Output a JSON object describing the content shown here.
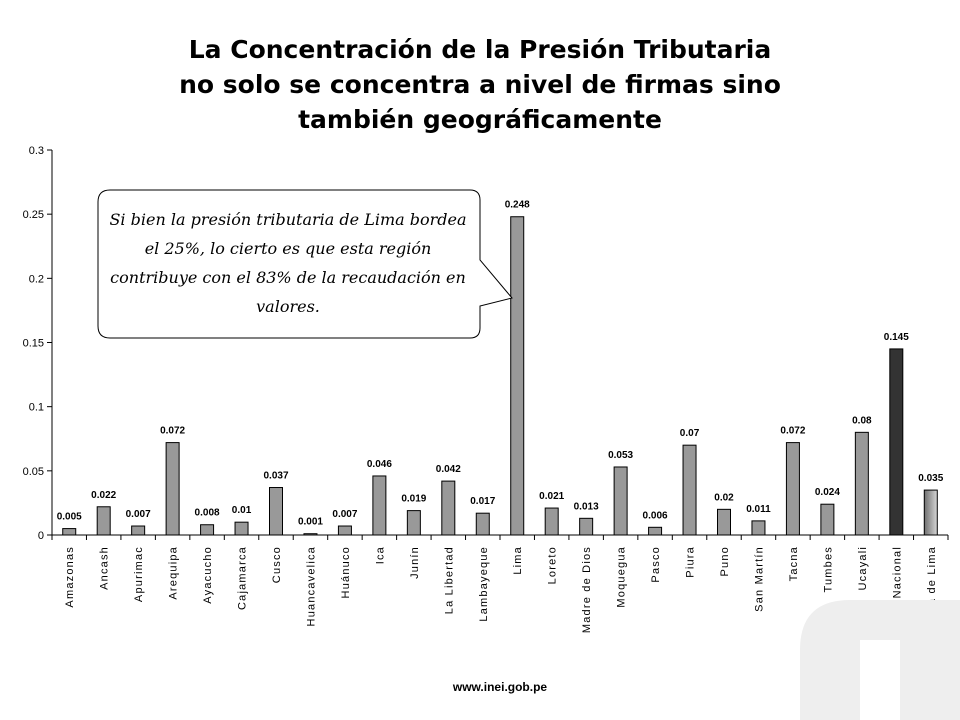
{
  "slide": {
    "title_lines": [
      "La Concentración de la Presión Tributaria",
      "no solo se concentra a nivel de firmas sino",
      "también geográficamente"
    ],
    "callout_lines": [
      "Si bien la presión tributaria de Lima bordea",
      "el 25%, lo cierto es que  esta región",
      "contribuye con el 83% de la recaudación en",
      "valores."
    ],
    "source": "www.inei.gob.pe"
  },
  "colors": {
    "bar": "#999999",
    "national_bar": "#333333",
    "fuera_bar": "#8c8c8c"
  },
  "chart_data": {
    "type": "bar",
    "categories": [
      "Amazonas",
      "Ancash",
      "Apurimac",
      "Arequipa",
      "Ayacucho",
      "Cajamarca",
      "Cusco",
      "Huancavelica",
      "Huánuco",
      "Ica",
      "Junín",
      "La Libertad",
      "Lambayeque",
      "Lima",
      "Loreto",
      "Madre de Dios",
      "Moquegua",
      "Pasco",
      "Piura",
      "Puno",
      "San Martín",
      "Tacna",
      "Tumbes",
      "Ucayali",
      "Promedio Nacional",
      "Fuera de Lima"
    ],
    "values": [
      0.005,
      0.022,
      0.007,
      0.072,
      0.008,
      0.01,
      0.037,
      0.001,
      0.007,
      0.046,
      0.019,
      0.042,
      0.017,
      0.248,
      0.021,
      0.013,
      0.053,
      0.006,
      0.07,
      0.02,
      0.011,
      0.072,
      0.024,
      0.08,
      0.145,
      0.035
    ],
    "data_labels": [
      "0.005",
      "0.022",
      "0.007",
      "0.072",
      "0.008",
      "0.01",
      "0.037",
      "0.001",
      "0.007",
      "0.046",
      "0.019",
      "0.042",
      "0.017",
      "0.248",
      "0.021",
      "0.013",
      "0.053",
      "0.006",
      "0.07",
      "0.02",
      "0.011",
      "0.072",
      "0.024",
      "0.08",
      "0.145",
      "0.035"
    ],
    "ylim": [
      0,
      0.3
    ],
    "yticks": [
      0,
      0.05,
      0.1,
      0.15,
      0.2,
      0.25,
      0.3
    ],
    "ytick_labels": [
      "0",
      "0.05",
      "0.1",
      "0.15",
      "0.2",
      "0.25",
      "0.3"
    ],
    "title": "",
    "xlabel": "",
    "ylabel": "",
    "grid": false,
    "legend": "none"
  }
}
